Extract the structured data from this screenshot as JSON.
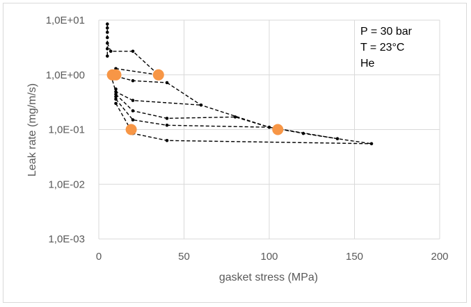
{
  "chart_data": {
    "type": "scatter",
    "title": "",
    "xlabel": "gasket stress (MPa)",
    "ylabel": "Leak rate (mg/m/s)",
    "xlim": [
      0,
      200
    ],
    "ylim": [
      0.001,
      10
    ],
    "y_scale": "log",
    "x_ticks": [
      "0",
      "50",
      "100",
      "150",
      "200"
    ],
    "y_ticks": [
      "1,0E-03",
      "1,0E-02",
      "1,0E-01",
      "1,0E+00",
      "1,0E+01"
    ],
    "grid": true,
    "annotations": [
      "P = 30 bar",
      "T = 23°C",
      "He"
    ],
    "colors": {
      "measured": "#000000",
      "highlight": "#f79646",
      "grid": "#d9d9d9",
      "text": "#595959"
    },
    "series": [
      {
        "style": "dashed-line-with-dots",
        "color": "#000000",
        "paths": [
          [
            [
              5,
              8.5
            ],
            [
              5,
              6.0
            ],
            [
              5,
              3.8
            ],
            [
              5,
              2.2
            ]
          ],
          [
            [
              5,
              3.8
            ],
            [
              7,
              2.7
            ],
            [
              20,
              2.7
            ],
            [
              35,
              1.0
            ],
            [
              10,
              1.3
            ]
          ],
          [
            [
              7,
              1.0
            ],
            [
              20,
              0.78
            ],
            [
              40,
              0.72
            ]
          ],
          [
            [
              40,
              0.72
            ],
            [
              60,
              0.28
            ],
            [
              100,
              0.11
            ],
            [
              140,
              0.068
            ],
            [
              160,
              0.055
            ]
          ],
          [
            [
              7,
              1.0
            ],
            [
              10,
              0.49
            ],
            [
              20,
              0.34
            ],
            [
              60,
              0.28
            ]
          ],
          [
            [
              10,
              0.44
            ],
            [
              20,
              0.22
            ],
            [
              40,
              0.16
            ],
            [
              80,
              0.17
            ],
            [
              100,
              0.11
            ]
          ],
          [
            [
              10,
              0.36
            ],
            [
              20,
              0.15
            ],
            [
              40,
              0.12
            ],
            [
              100,
              0.11
            ]
          ],
          [
            [
              10,
              0.3
            ],
            [
              20,
              0.085
            ],
            [
              40,
              0.063
            ],
            [
              160,
              0.055
            ]
          ],
          [
            [
              100,
              0.11
            ],
            [
              120,
              0.085
            ],
            [
              140,
              0.068
            ]
          ]
        ],
        "points": [
          [
            5,
            8.5
          ],
          [
            5,
            7.2
          ],
          [
            5,
            6.0
          ],
          [
            5,
            4.8
          ],
          [
            5,
            3.8
          ],
          [
            5,
            3.0
          ],
          [
            5,
            2.2
          ],
          [
            7,
            2.7
          ],
          [
            20,
            2.7
          ],
          [
            10,
            1.3
          ],
          [
            20,
            0.78
          ],
          [
            40,
            0.72
          ],
          [
            10,
            0.55
          ],
          [
            10,
            0.49
          ],
          [
            10,
            0.44
          ],
          [
            10,
            0.4
          ],
          [
            10,
            0.36
          ],
          [
            10,
            0.3
          ],
          [
            20,
            0.34
          ],
          [
            20,
            0.22
          ],
          [
            20,
            0.15
          ],
          [
            20,
            0.085
          ],
          [
            60,
            0.28
          ],
          [
            40,
            0.16
          ],
          [
            40,
            0.12
          ],
          [
            40,
            0.063
          ],
          [
            80,
            0.17
          ],
          [
            100,
            0.11
          ],
          [
            120,
            0.085
          ],
          [
            140,
            0.068
          ],
          [
            160,
            0.055
          ]
        ]
      },
      {
        "style": "large-markers",
        "color": "#f79646",
        "points": [
          [
            8,
            1.0
          ],
          [
            10,
            1.0
          ],
          [
            35,
            1.0
          ],
          [
            19,
            0.1
          ],
          [
            105,
            0.1
          ]
        ]
      }
    ]
  }
}
